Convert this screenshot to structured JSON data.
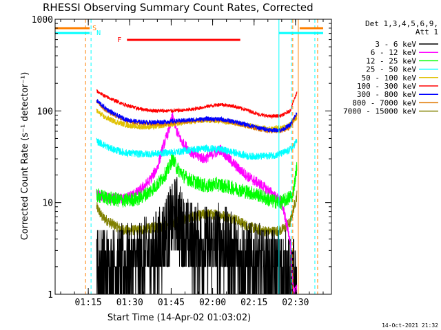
{
  "chart_data": {
    "type": "line",
    "title": "RHESSI Observing Summary Count Rates, Corrected",
    "xlabel": "Start Time (14-Apr-02 01:03:02)",
    "ylabel": "Corrected Count Rate (s⁻¹ detector⁻¹)",
    "timestamp": "14-Oct-2021 21:32",
    "yscale": "log",
    "ylim": [
      1,
      1000
    ],
    "xlim_minutes": [
      0,
      100
    ],
    "x_ticks": [
      {
        "label": "01:15",
        "m": 12
      },
      {
        "label": "01:30",
        "m": 27
      },
      {
        "label": "01:45",
        "m": 42
      },
      {
        "label": "02:00",
        "m": 57
      },
      {
        "label": "02:15",
        "m": 72
      },
      {
        "label": "02:30",
        "m": 87
      }
    ],
    "y_ticks": [
      {
        "label": "1",
        "v": 1
      },
      {
        "label": "10",
        "v": 10
      },
      {
        "label": "100",
        "v": 100
      },
      {
        "label": "1000",
        "v": 1000
      }
    ],
    "legend_header": [
      "Det 1,3,4,5,6,9,",
      "Att 1"
    ],
    "legend_position": "right",
    "data_start_m": 15,
    "data_end_m": 87.5,
    "series": [
      {
        "name": "3 - 6 keV",
        "color": "#000000",
        "noise": 0.45,
        "points": [
          [
            15,
            2
          ],
          [
            20,
            1.9
          ],
          [
            25,
            2
          ],
          [
            30,
            2.2
          ],
          [
            35,
            2.6
          ],
          [
            38,
            3.4
          ],
          [
            40,
            4.5
          ],
          [
            42,
            5.5
          ],
          [
            44,
            7.5
          ],
          [
            46,
            5
          ],
          [
            48,
            4
          ],
          [
            52,
            3.5
          ],
          [
            56,
            3.4
          ],
          [
            60,
            3.6
          ],
          [
            64,
            3
          ],
          [
            68,
            2.4
          ],
          [
            72,
            2.1
          ],
          [
            76,
            1.9
          ],
          [
            80,
            1.8
          ],
          [
            84,
            1.7
          ],
          [
            86,
            1.5
          ],
          [
            87.5,
            1.3
          ]
        ]
      },
      {
        "name": "6 - 12 keV",
        "color": "#ff00ff",
        "noise": 0.06,
        "points": [
          [
            15,
            12
          ],
          [
            20,
            11
          ],
          [
            25,
            11
          ],
          [
            30,
            13
          ],
          [
            34,
            17
          ],
          [
            37,
            24
          ],
          [
            39,
            40
          ],
          [
            41,
            60
          ],
          [
            42.5,
            88
          ],
          [
            44,
            60
          ],
          [
            46,
            45
          ],
          [
            50,
            34
          ],
          [
            54,
            30
          ],
          [
            57,
            34
          ],
          [
            60,
            38
          ],
          [
            63,
            30
          ],
          [
            66,
            24
          ],
          [
            70,
            19
          ],
          [
            74,
            16
          ],
          [
            78,
            13
          ],
          [
            82,
            10
          ],
          [
            85,
            4
          ],
          [
            86,
            1.2
          ],
          [
            87.5,
            1.1
          ]
        ]
      },
      {
        "name": "12 - 25 keV",
        "color": "#00ff00",
        "noise": 0.08,
        "points": [
          [
            15,
            12
          ],
          [
            20,
            11
          ],
          [
            25,
            10.5
          ],
          [
            30,
            11
          ],
          [
            34,
            13
          ],
          [
            38,
            17
          ],
          [
            41,
            23
          ],
          [
            42.5,
            31
          ],
          [
            44,
            24
          ],
          [
            47,
            19
          ],
          [
            50,
            17
          ],
          [
            55,
            15
          ],
          [
            58,
            16
          ],
          [
            62,
            15
          ],
          [
            66,
            14
          ],
          [
            70,
            13
          ],
          [
            74,
            12
          ],
          [
            78,
            10.5
          ],
          [
            82,
            10
          ],
          [
            84,
            11
          ],
          [
            86,
            12
          ],
          [
            87.5,
            25
          ]
        ]
      },
      {
        "name": "25 - 50 keV",
        "color": "#00ffff",
        "noise": 0.04,
        "points": [
          [
            15,
            47
          ],
          [
            20,
            39
          ],
          [
            25,
            35
          ],
          [
            30,
            34
          ],
          [
            35,
            34
          ],
          [
            40,
            35
          ],
          [
            45,
            36
          ],
          [
            50,
            38
          ],
          [
            55,
            39
          ],
          [
            60,
            38
          ],
          [
            65,
            35
          ],
          [
            70,
            32
          ],
          [
            75,
            32
          ],
          [
            80,
            33
          ],
          [
            84,
            36
          ],
          [
            86,
            40
          ],
          [
            87.5,
            48
          ]
        ]
      },
      {
        "name": "50 - 100 keV",
        "color": "#e0c000",
        "noise": 0.03,
        "points": [
          [
            15,
            100
          ],
          [
            18,
            85
          ],
          [
            22,
            76
          ],
          [
            26,
            70
          ],
          [
            30,
            67
          ],
          [
            35,
            67
          ],
          [
            40,
            70
          ],
          [
            45,
            74
          ],
          [
            50,
            77
          ],
          [
            55,
            79
          ],
          [
            60,
            78
          ],
          [
            65,
            74
          ],
          [
            70,
            69
          ],
          [
            74,
            66
          ],
          [
            78,
            64
          ],
          [
            82,
            66
          ],
          [
            85,
            71
          ],
          [
            87.5,
            85
          ]
        ]
      },
      {
        "name": "100 - 300 keV",
        "color": "#ff0000",
        "noise": 0.02,
        "points": [
          [
            15,
            165
          ],
          [
            18,
            145
          ],
          [
            22,
            128
          ],
          [
            26,
            115
          ],
          [
            30,
            106
          ],
          [
            35,
            101
          ],
          [
            40,
            100
          ],
          [
            45,
            101
          ],
          [
            50,
            104
          ],
          [
            55,
            112
          ],
          [
            60,
            118
          ],
          [
            65,
            112
          ],
          [
            70,
            101
          ],
          [
            74,
            91
          ],
          [
            78,
            87
          ],
          [
            82,
            89
          ],
          [
            85,
            100
          ],
          [
            87.5,
            160
          ]
        ]
      },
      {
        "name": "300 - 800 keV",
        "color": "#0000ff",
        "noise": 0.025,
        "points": [
          [
            15,
            130
          ],
          [
            18,
            108
          ],
          [
            22,
            90
          ],
          [
            26,
            80
          ],
          [
            30,
            76
          ],
          [
            35,
            75
          ],
          [
            40,
            76
          ],
          [
            45,
            78
          ],
          [
            50,
            80
          ],
          [
            55,
            82
          ],
          [
            60,
            81
          ],
          [
            65,
            76
          ],
          [
            70,
            70
          ],
          [
            74,
            65
          ],
          [
            78,
            62
          ],
          [
            82,
            62
          ],
          [
            85,
            70
          ],
          [
            87.5,
            95
          ]
        ]
      },
      {
        "name": "800 - 7000 keV",
        "color": "#e07800",
        "noise": 0.025,
        "points": [
          [
            15,
            128
          ],
          [
            18,
            104
          ],
          [
            22,
            88
          ],
          [
            26,
            78
          ],
          [
            30,
            74
          ],
          [
            35,
            72
          ],
          [
            40,
            72
          ],
          [
            45,
            75
          ],
          [
            50,
            78
          ],
          [
            55,
            80
          ],
          [
            60,
            79
          ],
          [
            65,
            74
          ],
          [
            70,
            68
          ],
          [
            74,
            63
          ],
          [
            78,
            60
          ],
          [
            82,
            60
          ],
          [
            85,
            66
          ],
          [
            87.5,
            90
          ]
        ]
      },
      {
        "name": "7000 - 15000 keV",
        "color": "#808000",
        "noise": 0.06,
        "points": [
          [
            15,
            9
          ],
          [
            17,
            7
          ],
          [
            20,
            6
          ],
          [
            23,
            5.3
          ],
          [
            26,
            5
          ],
          [
            30,
            5
          ],
          [
            35,
            5.3
          ],
          [
            40,
            5.6
          ],
          [
            45,
            6.3
          ],
          [
            50,
            7
          ],
          [
            55,
            7.5
          ],
          [
            60,
            7.3
          ],
          [
            65,
            6.6
          ],
          [
            70,
            5.5
          ],
          [
            74,
            5
          ],
          [
            78,
            4.8
          ],
          [
            82,
            5
          ],
          [
            85,
            6
          ],
          [
            87.5,
            12
          ]
        ]
      }
    ],
    "flag_bars": [
      {
        "label": "S",
        "color": "#ff8000",
        "spans": [
          [
            0,
            12.5
          ],
          [
            88.5,
            97
          ]
        ],
        "y": 41
      },
      {
        "label": "N",
        "color": "#00ffff",
        "spans": [
          [
            0,
            12.5
          ],
          [
            81,
            97
          ]
        ],
        "y": 48
      }
    ],
    "flare_bar": {
      "label": "F",
      "color": "#ff0000",
      "span": [
        26,
        67
      ],
      "y": 58
    },
    "vertical_markers": [
      {
        "m": 0,
        "color": "#00ffff",
        "style": "solid"
      },
      {
        "m": 11,
        "color": "#ff8000",
        "style": "dash"
      },
      {
        "m": 13,
        "color": "#00ffff",
        "style": "dash"
      },
      {
        "m": 81,
        "color": "#00ffff",
        "style": "solid"
      },
      {
        "m": 85.5,
        "color": "#00ffff",
        "style": "dash"
      },
      {
        "m": 86,
        "color": "#ff8000",
        "style": "dash"
      },
      {
        "m": 88,
        "color": "#ff8000",
        "style": "solid"
      },
      {
        "m": 94,
        "color": "#00ffff",
        "style": "dash"
      },
      {
        "m": 95,
        "color": "#ff8000",
        "style": "dash"
      }
    ]
  }
}
